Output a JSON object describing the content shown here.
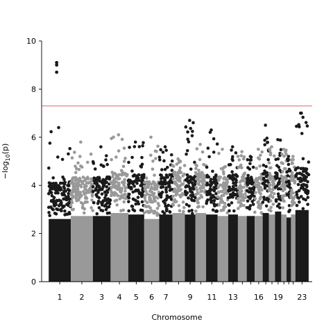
{
  "chart_data": {
    "type": "scatter",
    "subtype": "manhattan",
    "title": "",
    "xlabel": "Chromosome",
    "ylabel": "−log",
    "ylabel_sub": "10",
    "ylabel_tail": "(p)",
    "ylim": [
      0,
      10
    ],
    "yticks": [
      0,
      2,
      4,
      6,
      8,
      10
    ],
    "significance_line": 7.3,
    "significance_color": "#e06666",
    "series_colors": [
      "#1a1a1a",
      "#999999"
    ],
    "grid": false,
    "legend": "none",
    "chromosomes": [
      {
        "label": "1",
        "shown": true,
        "start": 0.0,
        "end": 2.5,
        "bulk": 4.2,
        "scatter_max": 6.4
      },
      {
        "label": "2",
        "shown": true,
        "start": 2.5,
        "end": 5.0,
        "bulk": 4.4,
        "scatter_max": 5.8
      },
      {
        "label": "3",
        "shown": true,
        "start": 5.0,
        "end": 7.0,
        "bulk": 4.4,
        "scatter_max": 5.6
      },
      {
        "label": "4",
        "shown": true,
        "start": 7.0,
        "end": 9.0,
        "bulk": 4.6,
        "scatter_max": 6.1
      },
      {
        "label": "5",
        "shown": true,
        "start": 9.0,
        "end": 10.8,
        "bulk": 4.5,
        "scatter_max": 5.8
      },
      {
        "label": "6",
        "shown": true,
        "start": 10.8,
        "end": 12.5,
        "bulk": 4.2,
        "scatter_max": 6.0
      },
      {
        "label": "7",
        "shown": true,
        "start": 12.5,
        "end": 14.0,
        "bulk": 4.5,
        "scatter_max": 5.6
      },
      {
        "label": "8",
        "shown": false,
        "start": 14.0,
        "end": 15.4,
        "bulk": 4.6,
        "scatter_max": 5.1
      },
      {
        "label": "9",
        "shown": true,
        "start": 15.4,
        "end": 16.6,
        "bulk": 4.5,
        "scatter_max": 6.7
      },
      {
        "label": "10",
        "shown": false,
        "start": 16.6,
        "end": 17.8,
        "bulk": 4.6,
        "scatter_max": 5.7
      },
      {
        "label": "11",
        "shown": true,
        "start": 17.8,
        "end": 19.1,
        "bulk": 4.5,
        "scatter_max": 6.3
      },
      {
        "label": "12",
        "shown": false,
        "start": 19.1,
        "end": 20.3,
        "bulk": 4.4,
        "scatter_max": 5.5
      },
      {
        "label": "13",
        "shown": true,
        "start": 20.3,
        "end": 21.4,
        "bulk": 4.5,
        "scatter_max": 5.6
      },
      {
        "label": "14",
        "shown": false,
        "start": 21.4,
        "end": 22.4,
        "bulk": 4.4,
        "scatter_max": 5.4
      },
      {
        "label": "15",
        "shown": false,
        "start": 22.4,
        "end": 23.3,
        "bulk": 4.4,
        "scatter_max": 5.2
      },
      {
        "label": "16",
        "shown": true,
        "start": 23.3,
        "end": 24.2,
        "bulk": 4.4,
        "scatter_max": 5.5
      },
      {
        "label": "17",
        "shown": false,
        "start": 24.2,
        "end": 24.9,
        "bulk": 4.6,
        "scatter_max": 6.5
      },
      {
        "label": "18",
        "shown": false,
        "start": 24.9,
        "end": 25.6,
        "bulk": 4.5,
        "scatter_max": 5.6
      },
      {
        "label": "19",
        "shown": true,
        "start": 25.6,
        "end": 26.3,
        "bulk": 4.7,
        "scatter_max": 5.9
      },
      {
        "label": "20",
        "shown": false,
        "start": 26.3,
        "end": 26.9,
        "bulk": 4.5,
        "scatter_max": 5.5
      },
      {
        "label": "21",
        "shown": false,
        "start": 26.9,
        "end": 27.4,
        "bulk": 4.3,
        "scatter_max": 5.2
      },
      {
        "label": "22",
        "shown": false,
        "start": 27.4,
        "end": 27.9,
        "bulk": 4.5,
        "scatter_max": 5.2
      },
      {
        "label": "23",
        "shown": true,
        "start": 27.9,
        "end": 29.4,
        "bulk": 4.8,
        "scatter_max": 7.0
      }
    ],
    "xlim": [
      -0.8,
      29.8
    ],
    "top_hits": [
      {
        "chromosome": "1",
        "position": 0.9,
        "y": 9.1
      },
      {
        "chromosome": "1",
        "position": 0.9,
        "y": 9.0
      },
      {
        "chromosome": "1",
        "position": 0.9,
        "y": 8.7
      },
      {
        "chromosome": "23",
        "position": 28.5,
        "y": 7.0
      }
    ]
  }
}
